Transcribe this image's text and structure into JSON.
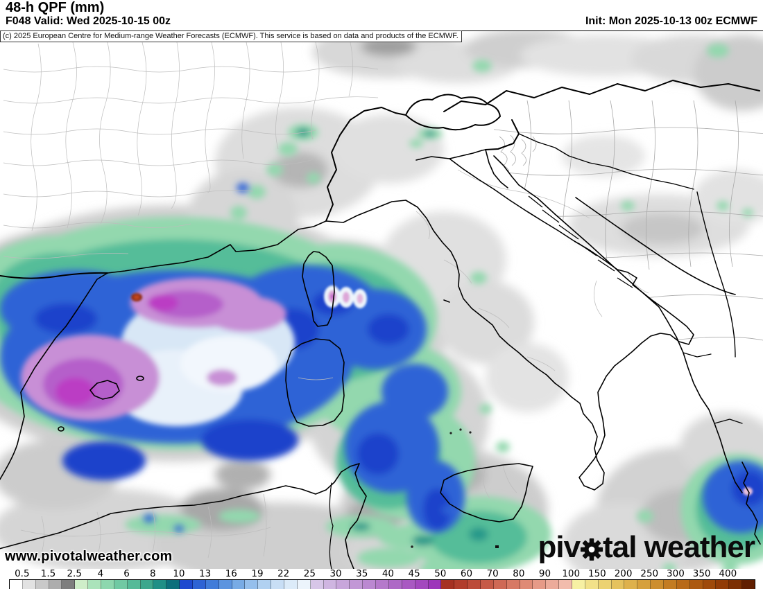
{
  "header": {
    "title": "48-h QPF (mm)",
    "valid": "F048 Valid: Wed 2025-10-15 00z",
    "init": "Init: Mon 2025-10-13 00z ECMWF"
  },
  "copyright": "(c) 2025 European Centre for Medium-range Weather Forecasts (ECMWF). This service is based on data and products of the ECMWF.",
  "watermark": "www.pivotalweather.com",
  "logo": {
    "part1": "piv",
    "part2": "tal weather"
  },
  "colorbar": {
    "unit": "mm",
    "labels": [
      "0.5",
      "1.5",
      "2.5",
      "4",
      "6",
      "8",
      "10",
      "13",
      "16",
      "19",
      "22",
      "25",
      "30",
      "35",
      "40",
      "45",
      "50",
      "60",
      "70",
      "80",
      "90",
      "100",
      "150",
      "200",
      "250",
      "300",
      "350",
      "400"
    ],
    "cell_colors": [
      "#ffffff",
      "#e2e2e2",
      "#c9c9c9",
      "#adadad",
      "#7e7e7e",
      "#cfeec9",
      "#abe3bb",
      "#8dd7ae",
      "#70c9a3",
      "#55ba98",
      "#3da78d",
      "#1f8f86",
      "#0c6f7c",
      "#1e49cf",
      "#2e63d4",
      "#417cd9",
      "#5c94df",
      "#78abe5",
      "#95bfec",
      "#b1d1f1",
      "#c8def5",
      "#dcebf9",
      "#ecf4fc",
      "#d7c6e8",
      "#cfb5e1",
      "#c8a6db",
      "#c297d6",
      "#bb88d1",
      "#b579cb",
      "#ae69c6",
      "#a959c2",
      "#a348be",
      "#9d35ba",
      "#a63122",
      "#b13d2c",
      "#bc4b39",
      "#c65a47",
      "#cf6955",
      "#d77964",
      "#df8a75",
      "#e69a87",
      "#ecab9a",
      "#f2bcac",
      "#f7f0a3",
      "#f2e189",
      "#ecd272",
      "#e5c25e",
      "#deb14c",
      "#d6a03c",
      "#cd8e2e",
      "#c37c22",
      "#b86a18",
      "#ac5910",
      "#9f4a0a",
      "#923c06",
      "#7c2f03",
      "#611f01"
    ]
  },
  "map_colors": {
    "light_precip_gray": "#cfcfcf",
    "green": "#93d8ae",
    "dark_green": "#55bd99",
    "teal": "#27998a",
    "blue": "#2f63d6",
    "dark_blue": "#1d43cb",
    "light_core": "#d8e7f6",
    "magenta": "#c88fd6",
    "deep_magenta": "#bb3ec4",
    "extreme_spot": "#c0441c"
  }
}
